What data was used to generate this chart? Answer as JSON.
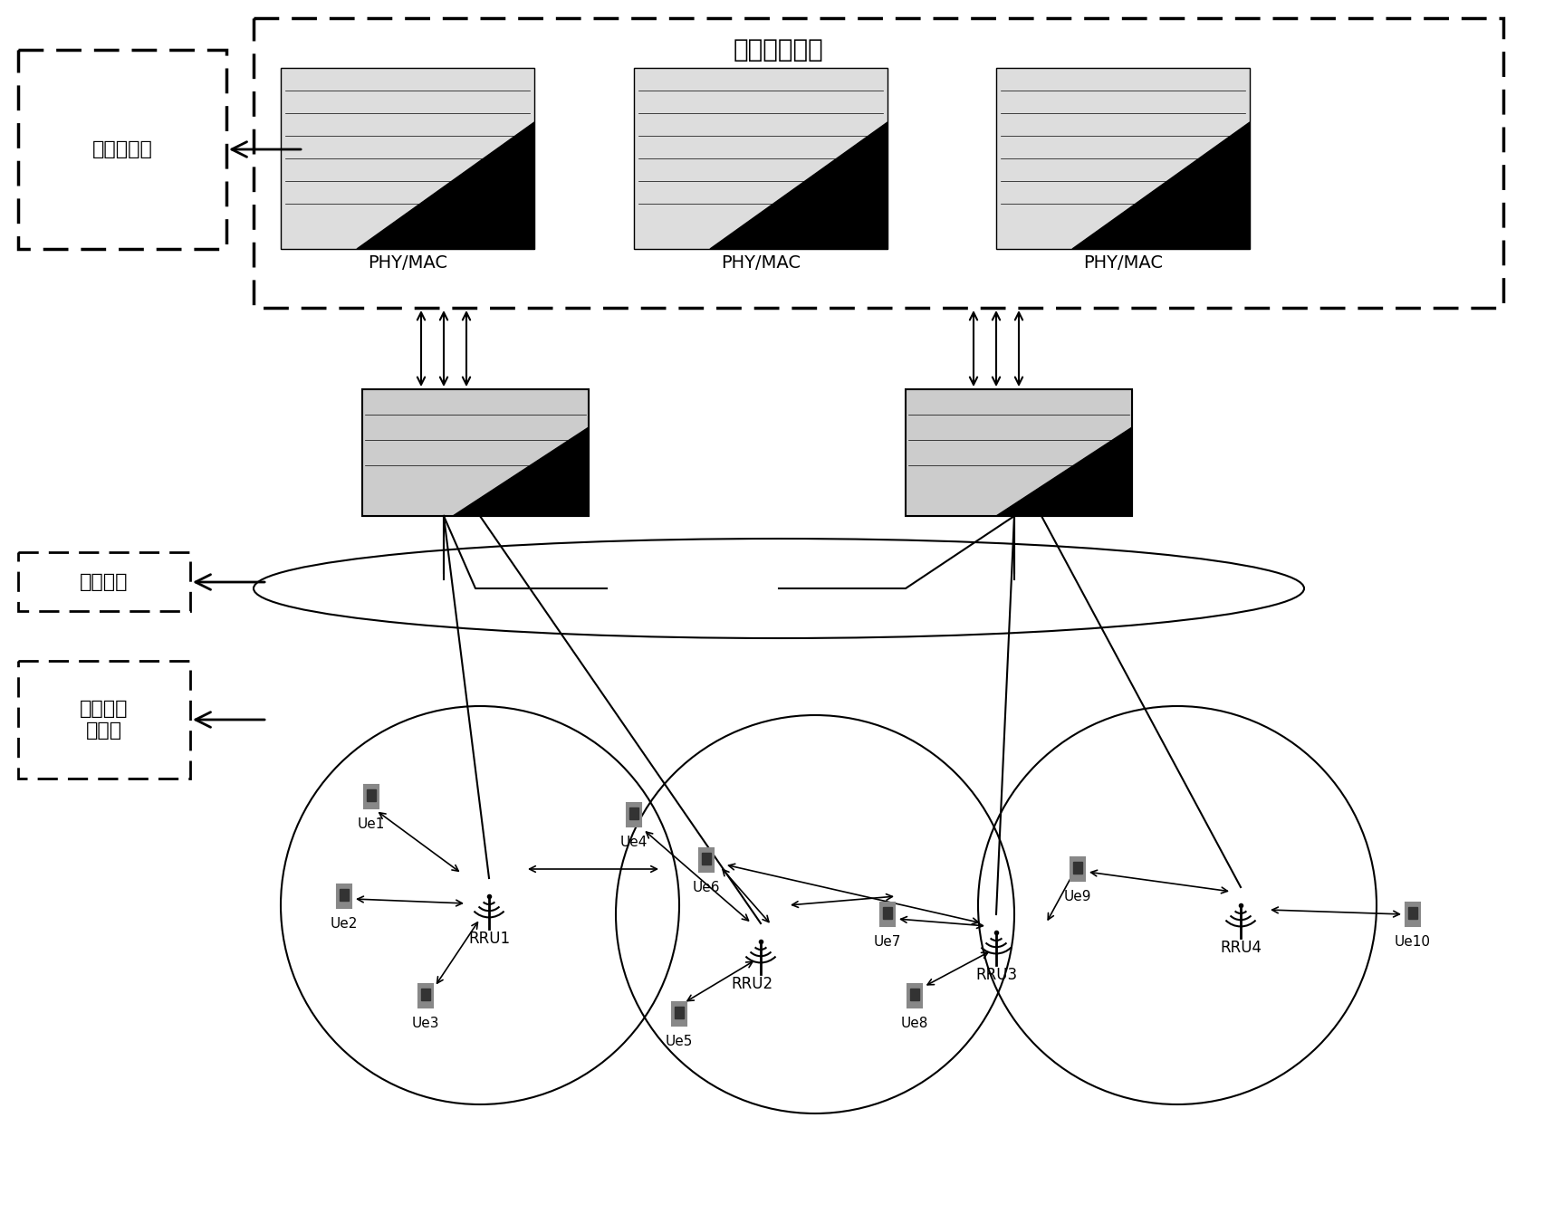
{
  "title": "虚拟基站集群",
  "label_baseband": "基带资源池",
  "label_optical": "光传输网",
  "label_distributed": "分布式无\n线网络",
  "phy_mac_labels": [
    "PHY/MAC",
    "PHY/MAC",
    "PHY/MAC"
  ],
  "rru_labels": [
    "RRU1",
    "RRU2",
    "RRU3",
    "RRU4"
  ],
  "ue_labels": [
    "Ue1",
    "Ue2",
    "Ue3",
    "Ue4",
    "Ue5",
    "Ue6",
    "Ue7",
    "Ue8",
    "Ue9",
    "Ue10"
  ],
  "bg_color": "#ffffff",
  "text_color": "#000000",
  "dashed_box_color": "#000000",
  "solid_box_color": "#000000"
}
